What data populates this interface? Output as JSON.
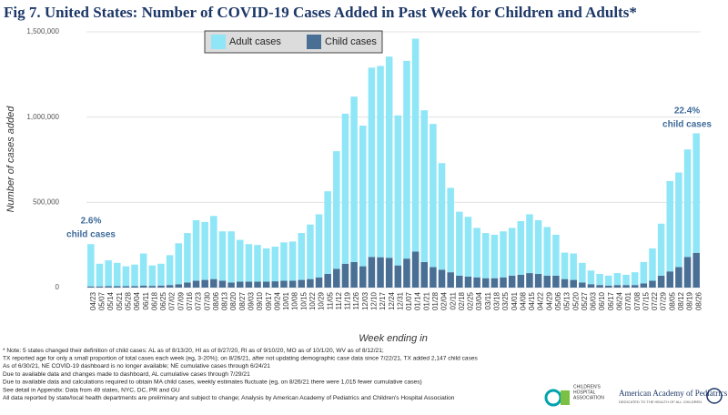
{
  "chart_data": {
    "type": "stacked_bar",
    "title": "Fig 7. United States: Number of COVID-19 Cases Added in Past Week for Children and Adults*",
    "y_label": "Number of cases added",
    "x_label": "Week ending in",
    "categories": [
      "04/23",
      "05/07",
      "05/14",
      "05/21",
      "05/28",
      "06/04",
      "06/11",
      "06/18",
      "06/25",
      "07/02",
      "07/09",
      "07/16",
      "07/23",
      "07/30",
      "08/06",
      "08/13",
      "08/20",
      "08/27",
      "09/03",
      "09/10",
      "09/17",
      "09/24",
      "10/01",
      "10/08",
      "10/15",
      "10/22",
      "10/29",
      "11/05",
      "11/12",
      "11/19",
      "11/26",
      "12/03",
      "12/10",
      "12/17",
      "12/24",
      "12/31",
      "01/07",
      "01/14",
      "01/21",
      "01/28",
      "02/04",
      "02/11",
      "02/18",
      "02/25",
      "03/04",
      "03/11",
      "03/18",
      "03/25",
      "04/01",
      "04/08",
      "04/15",
      "04/22",
      "04/29",
      "05/06",
      "05/13",
      "05/20",
      "05/27",
      "06/03",
      "06/10",
      "06/17",
      "06/24",
      "07/01",
      "07/08",
      "07/15",
      "07/22",
      "07/29",
      "08/05",
      "08/12",
      "08/19",
      "08/26"
    ],
    "series": [
      {
        "name": "Adult cases",
        "color": "#8fe6f7",
        "values": [
          248000,
          133000,
          152000,
          137000,
          117000,
          126000,
          188000,
          120000,
          128000,
          175000,
          240000,
          290000,
          355000,
          340000,
          370000,
          290000,
          300000,
          245000,
          220000,
          215000,
          195000,
          203000,
          225000,
          230000,
          275000,
          320000,
          370000,
          485000,
          690000,
          880000,
          970000,
          825000,
          1110000,
          1122000,
          1180000,
          880000,
          1160000,
          1249000,
          890000,
          840000,
          625000,
          495000,
          375000,
          350000,
          290000,
          265000,
          255000,
          270000,
          280000,
          315000,
          345000,
          315000,
          285000,
          240000,
          155000,
          155000,
          115000,
          80000,
          65000,
          58000,
          70000,
          60000,
          75000,
          125000,
          190000,
          305000,
          530000,
          555000,
          630000,
          701000
        ]
      },
      {
        "name": "Child cases",
        "color": "#4a6f95",
        "values": [
          7000,
          7000,
          8000,
          8000,
          8000,
          9000,
          12000,
          10000,
          12000,
          15000,
          20000,
          30000,
          40000,
          45000,
          50000,
          40000,
          30000,
          35000,
          35000,
          35000,
          35000,
          37000,
          40000,
          40000,
          45000,
          50000,
          60000,
          80000,
          110000,
          140000,
          150000,
          125000,
          180000,
          178000,
          175000,
          130000,
          170000,
          211000,
          150000,
          120000,
          105000,
          90000,
          70000,
          65000,
          60000,
          55000,
          55000,
          60000,
          70000,
          75000,
          85000,
          80000,
          70000,
          70000,
          50000,
          45000,
          30000,
          20000,
          15000,
          12000,
          15000,
          15000,
          15000,
          25000,
          40000,
          70000,
          95000,
          120000,
          180000,
          204000
        ]
      }
    ],
    "ylim": [
      0,
      1500000
    ],
    "yticks": [
      0,
      {
        "value": 500000,
        "label": "500,000"
      },
      {
        "value": 1000000,
        "label": "1,000,000"
      },
      {
        "value": 1500000,
        "label": "1,500,000"
      }
    ],
    "grid": true,
    "legend": "top",
    "annotations": [
      {
        "text": [
          "2.6%",
          "child cases"
        ]
      },
      {
        "text": [
          "22.4%",
          "child cases"
        ]
      }
    ],
    "notes": [
      "* Note: 5 states changed their definition of child cases: AL as of 8/13/20, HI as of 8/27/20, RI as of 9/10/20, MO as of 10/1/20, WV as of 8/12/21;",
      "TX reported age for only a small proportion of total cases each week (eg, 3-20%); on 8/26/21, after not updating demographic case data since 7/22/21, TX added 2,147 child cases",
      "As of 6/30/21, NE COVID-19 dashboard is no longer available; NE cumulative cases through 6/24/21",
      "Due to available data and changes made to dashboard, AL cumulative cases through 7/29/21",
      "Due to available data and calculations required to obtain MA child cases, weekly estimates fluctuate (eg, on 8/26/21 there were 1,015 fewer cumulative cases)",
      "See detail in Appendix: Data from 49 states, NYC, DC, PR and GU",
      "All data reported by state/local health departments are preliminary and subject to change; Analysis by American Academy of Pediatrics and Children's Hospital Association"
    ],
    "logos": {
      "cha": [
        "CHILDREN'S",
        "HOSPITAL",
        "ASSOCIATION"
      ],
      "aap": [
        "American Academy of Pediatrics",
        "DEDICATED TO THE HEALTH OF ALL CHILDREN"
      ]
    }
  }
}
